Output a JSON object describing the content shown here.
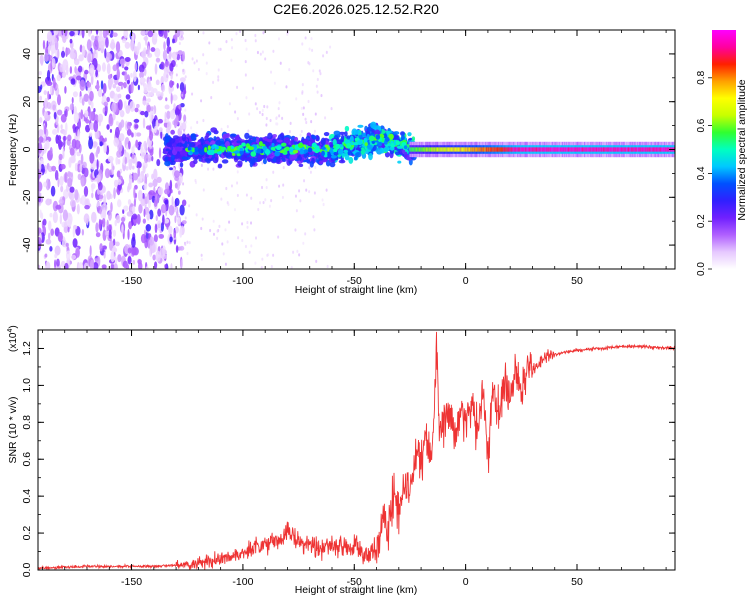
{
  "title": "C2E6.2026.025.12.52.R20",
  "colors": {
    "snr_line": "#ee3333",
    "axes": "#000000"
  },
  "chart_data": [
    {
      "type": "heatmap",
      "name": "spectrogram",
      "xlabel": "Height of straight line (km)",
      "ylabel": "Frequency (Hz)",
      "xlim": [
        -192,
        94
      ],
      "ylim": [
        -50,
        50
      ],
      "xticks": [
        "-150",
        "-100",
        "-50",
        "0",
        "50"
      ],
      "xtick_values": [
        -150,
        -100,
        -50,
        0,
        50
      ],
      "yticks": [
        "-40",
        "-20",
        "0",
        "20",
        "40"
      ],
      "ytick_values": [
        -40,
        -20,
        0,
        20,
        40
      ],
      "colorbar": {
        "label": "Normalized spectral amplitude",
        "range": [
          0,
          1
        ],
        "ticks": [
          "0.0",
          "0.2",
          "0.4",
          "0.6",
          "0.8"
        ],
        "tick_values": [
          0,
          0.2,
          0.4,
          0.6,
          0.8
        ],
        "colors": [
          "#ffffff",
          "#e6c8ff",
          "#b060ff",
          "#7020ff",
          "#3020ff",
          "#0050ff",
          "#00c8ff",
          "#00ffc0",
          "#30ff30",
          "#c8ff00",
          "#ffff00",
          "#ffa000",
          "#ff2000",
          "#ff00a0",
          "#ff00ff"
        ]
      },
      "features": [
        {
          "region": "-192 to -130 km",
          "description": "broadband scattered noise across all frequencies, amplitude 0.05-0.3"
        },
        {
          "region": "-130 to -25 km",
          "description": "band around 0 Hz (about -8 to +10 Hz), amplitude 0.2-0.55, drifting upward to about +5 Hz near -45 km"
        },
        {
          "region": "-25 to 94 km",
          "description": "narrow steady line at about 0 Hz, amplitude 0.6-1.0"
        }
      ]
    },
    {
      "type": "line",
      "name": "snr",
      "xlabel": "Height of straight line (km)",
      "ylabel": "SNR (10 * v/v)",
      "yscale_label": "(x10^4)",
      "yscale_base": "(x10",
      "yscale_exp": "4",
      "yscale_close": ")",
      "xlim": [
        -192,
        94
      ],
      "ylim": [
        0,
        1.3
      ],
      "xticks": [
        "-150",
        "-100",
        "-50",
        "0",
        "50"
      ],
      "xtick_values": [
        -150,
        -100,
        -50,
        0,
        50
      ],
      "yticks": [
        "0.0",
        "0.2",
        "0.4",
        "0.6",
        "0.8",
        "1.0",
        "1.2"
      ],
      "ytick_values": [
        0,
        0.2,
        0.4,
        0.6,
        0.8,
        1.0,
        1.2
      ],
      "series": [
        {
          "name": "SNR",
          "x": [
            -192,
            -180,
            -170,
            -160,
            -150,
            -140,
            -130,
            -125,
            -120,
            -115,
            -110,
            -105,
            -100,
            -95,
            -90,
            -85,
            -80,
            -75,
            -70,
            -65,
            -60,
            -55,
            -50,
            -45,
            -40,
            -37,
            -35,
            -32,
            -30,
            -27,
            -25,
            -22,
            -20,
            -18,
            -15,
            -13,
            -12,
            -10,
            -8,
            -5,
            -2,
            0,
            3,
            5,
            8,
            10,
            12,
            15,
            18,
            20,
            22,
            25,
            28,
            30,
            35,
            40,
            45,
            50,
            60,
            70,
            80,
            94
          ],
          "y": [
            0.01,
            0.015,
            0.02,
            0.02,
            0.02,
            0.02,
            0.025,
            0.03,
            0.04,
            0.05,
            0.06,
            0.07,
            0.09,
            0.12,
            0.14,
            0.16,
            0.2,
            0.16,
            0.13,
            0.12,
            0.12,
            0.11,
            0.13,
            0.08,
            0.12,
            0.3,
            0.2,
            0.45,
            0.3,
            0.5,
            0.4,
            0.65,
            0.55,
            0.75,
            0.6,
            1.25,
            0.8,
            0.75,
            0.9,
            0.7,
            0.85,
            0.8,
            0.9,
            0.75,
            0.95,
            0.6,
            1.0,
            0.85,
            1.05,
            0.9,
            1.1,
            0.95,
            1.12,
            1.08,
            1.15,
            1.17,
            1.18,
            1.19,
            1.2,
            1.21,
            1.21,
            1.2
          ]
        }
      ]
    }
  ]
}
